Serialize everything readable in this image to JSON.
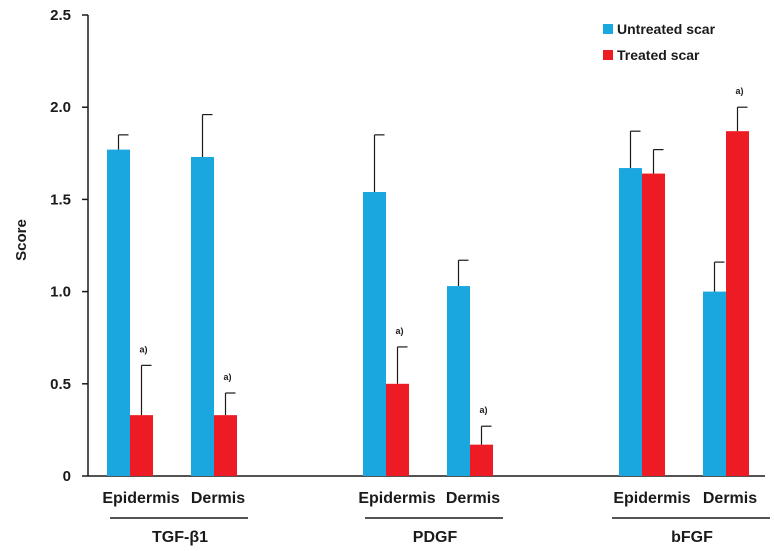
{
  "chart_data": {
    "type": "bar",
    "ylabel": "Score",
    "ylim": [
      0,
      2.5
    ],
    "yticks": [
      "0",
      "0.5",
      "1.0",
      "1.5",
      "2.0",
      "2.5"
    ],
    "ytick_values": [
      0,
      0.5,
      1.0,
      1.5,
      2.0,
      2.5
    ],
    "legend_position": "top-right",
    "groups": [
      {
        "label": "TGF-β1",
        "categories": [
          "Epidermis",
          "Dermis"
        ]
      },
      {
        "label": "PDGF",
        "categories": [
          "Epidermis",
          "Dermis"
        ]
      },
      {
        "label": "bFGF",
        "categories": [
          "Epidermis",
          "Dermis"
        ]
      }
    ],
    "series": [
      {
        "name": "Untreated scar",
        "color": "#1aa7e0",
        "values": [
          1.77,
          1.73,
          1.54,
          1.03,
          1.67,
          1.0
        ],
        "errors": [
          0.08,
          0.23,
          0.31,
          0.14,
          0.2,
          0.16
        ]
      },
      {
        "name": "Treated scar",
        "color": "#ed1c24",
        "values": [
          0.33,
          0.33,
          0.5,
          0.17,
          1.64,
          1.87
        ],
        "errors": [
          0.27,
          0.12,
          0.2,
          0.1,
          0.13,
          0.13
        ],
        "annotations": [
          "a)",
          "a)",
          "a)",
          "a)",
          "",
          "a)"
        ]
      }
    ]
  }
}
